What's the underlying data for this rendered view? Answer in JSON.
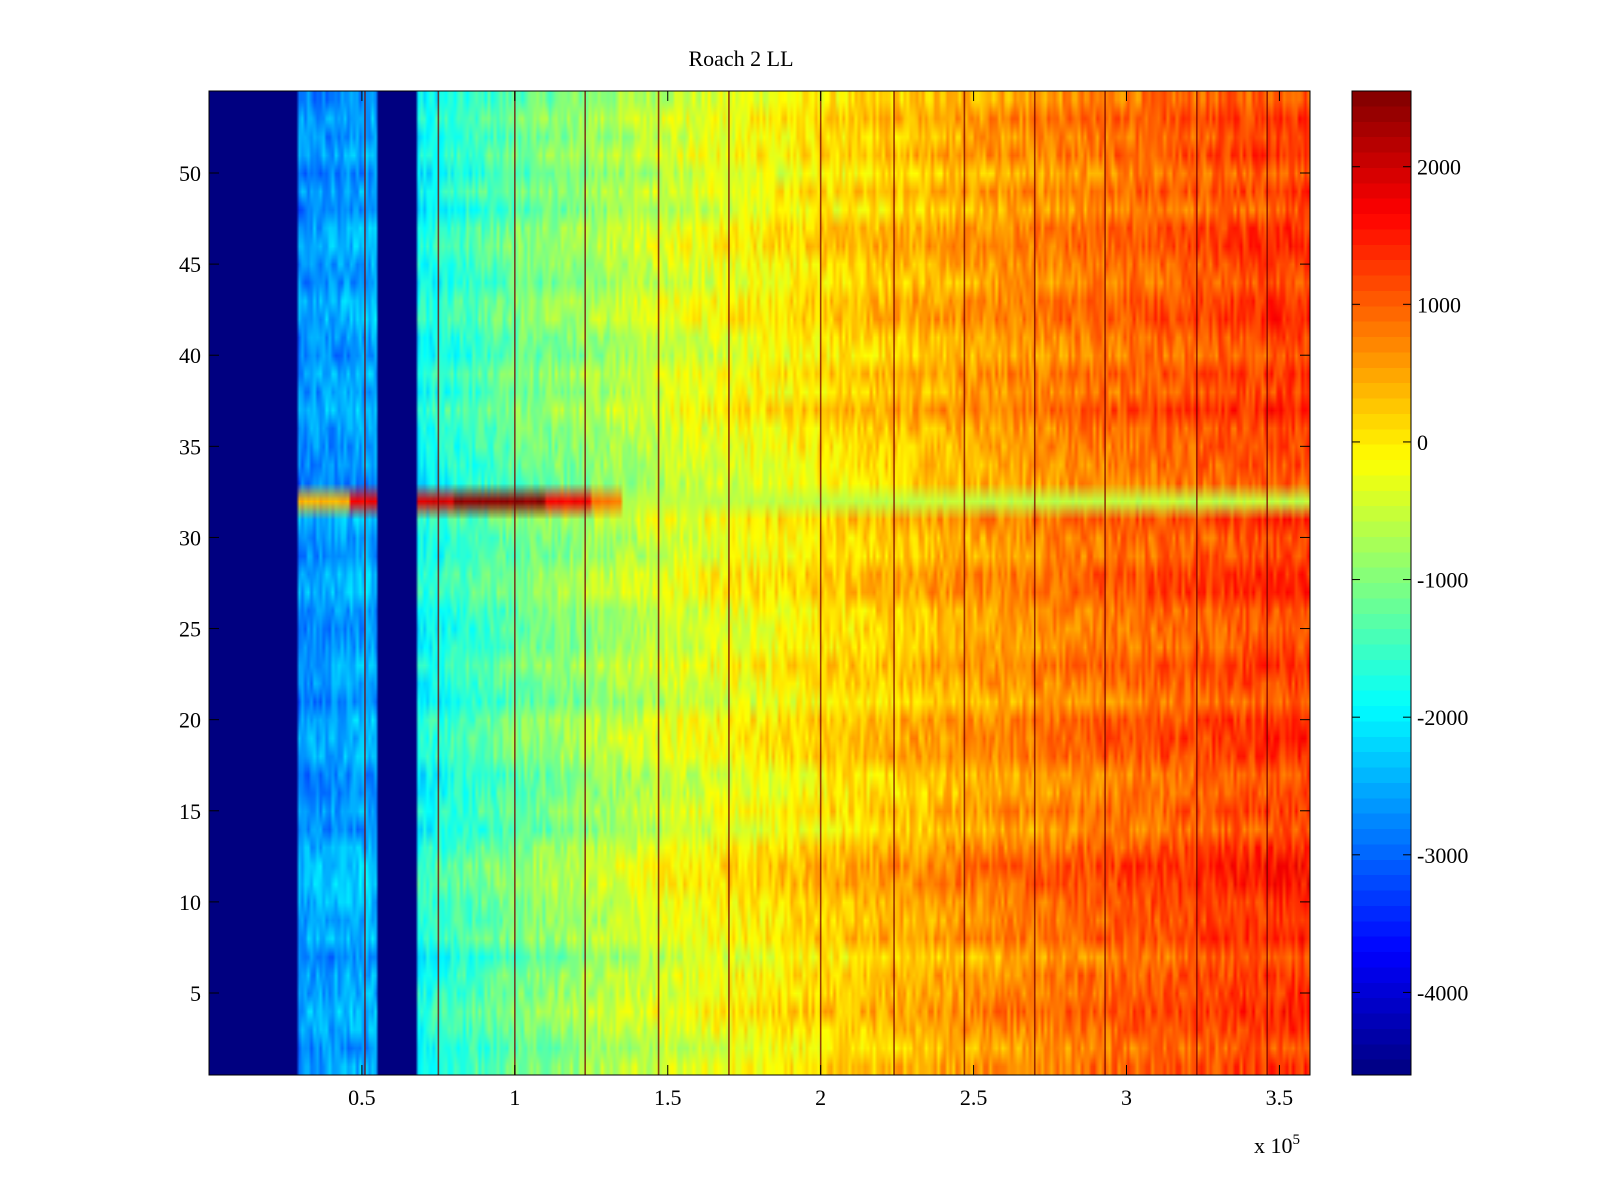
{
  "chart_data": {
    "type": "heatmap",
    "title": "Roach 2 LL",
    "xlabel": "",
    "ylabel": "",
    "x_exponent_label": "x 10",
    "x_exponent_power": "5",
    "xlim": [
      0,
      360000
    ],
    "ylim": [
      0.5,
      54.5
    ],
    "x_ticks": [
      {
        "value": 50000,
        "label": "0.5"
      },
      {
        "value": 100000,
        "label": "1"
      },
      {
        "value": 150000,
        "label": "1.5"
      },
      {
        "value": 200000,
        "label": "2"
      },
      {
        "value": 250000,
        "label": "2.5"
      },
      {
        "value": 300000,
        "label": "3"
      },
      {
        "value": 350000,
        "label": "3.5"
      }
    ],
    "y_ticks": [
      {
        "value": 5,
        "label": "5"
      },
      {
        "value": 10,
        "label": "10"
      },
      {
        "value": 15,
        "label": "15"
      },
      {
        "value": 20,
        "label": "20"
      },
      {
        "value": 25,
        "label": "25"
      },
      {
        "value": 30,
        "label": "30"
      },
      {
        "value": 35,
        "label": "35"
      },
      {
        "value": 40,
        "label": "40"
      },
      {
        "value": 45,
        "label": "45"
      },
      {
        "value": 50,
        "label": "50"
      }
    ],
    "colorbar": {
      "colormap": "jet",
      "clim": [
        -4600,
        2550
      ],
      "ticks": [
        {
          "value": -4000,
          "label": "-4000"
        },
        {
          "value": -3000,
          "label": "-3000"
        },
        {
          "value": -2000,
          "label": "-2000"
        },
        {
          "value": -1000,
          "label": "-1000"
        },
        {
          "value": 0,
          "label": "0"
        },
        {
          "value": 1000,
          "label": "1000"
        },
        {
          "value": 2000,
          "label": "2000"
        }
      ]
    },
    "rows": 54,
    "columns": 360,
    "x_step": 1000,
    "empty_x_ranges": [
      [
        0,
        29000
      ],
      [
        55000,
        68000
      ]
    ],
    "gradient_profile": [
      {
        "x": 29000,
        "value": -2700
      },
      {
        "x": 55000,
        "value": -2500
      },
      {
        "x": 68000,
        "value": -1900
      },
      {
        "x": 100000,
        "value": -1200
      },
      {
        "x": 150000,
        "value": -450
      },
      {
        "x": 200000,
        "value": 50
      },
      {
        "x": 250000,
        "value": 500
      },
      {
        "x": 300000,
        "value": 900
      },
      {
        "x": 360000,
        "value": 1250
      }
    ],
    "vertical_lines_x": [
      51000,
      75000,
      100000,
      123000,
      147000,
      170000,
      200000,
      224000,
      247000,
      270000,
      293000,
      323000,
      346000
    ],
    "anomaly_row": {
      "row": 32,
      "segments": [
        {
          "x": [
            29000,
            46000
          ],
          "value": 400
        },
        {
          "x": [
            46000,
            55000
          ],
          "value": 1700
        },
        {
          "x": [
            68000,
            80000
          ],
          "value": 1900
        },
        {
          "x": [
            80000,
            110000
          ],
          "value": 2450
        },
        {
          "x": [
            110000,
            125000
          ],
          "value": 1700
        },
        {
          "x": [
            125000,
            135000
          ],
          "value": 800
        },
        {
          "x": [
            135000,
            360000
          ],
          "value": -600
        }
      ]
    },
    "hot_band_rows": [
      11,
      12
    ]
  }
}
